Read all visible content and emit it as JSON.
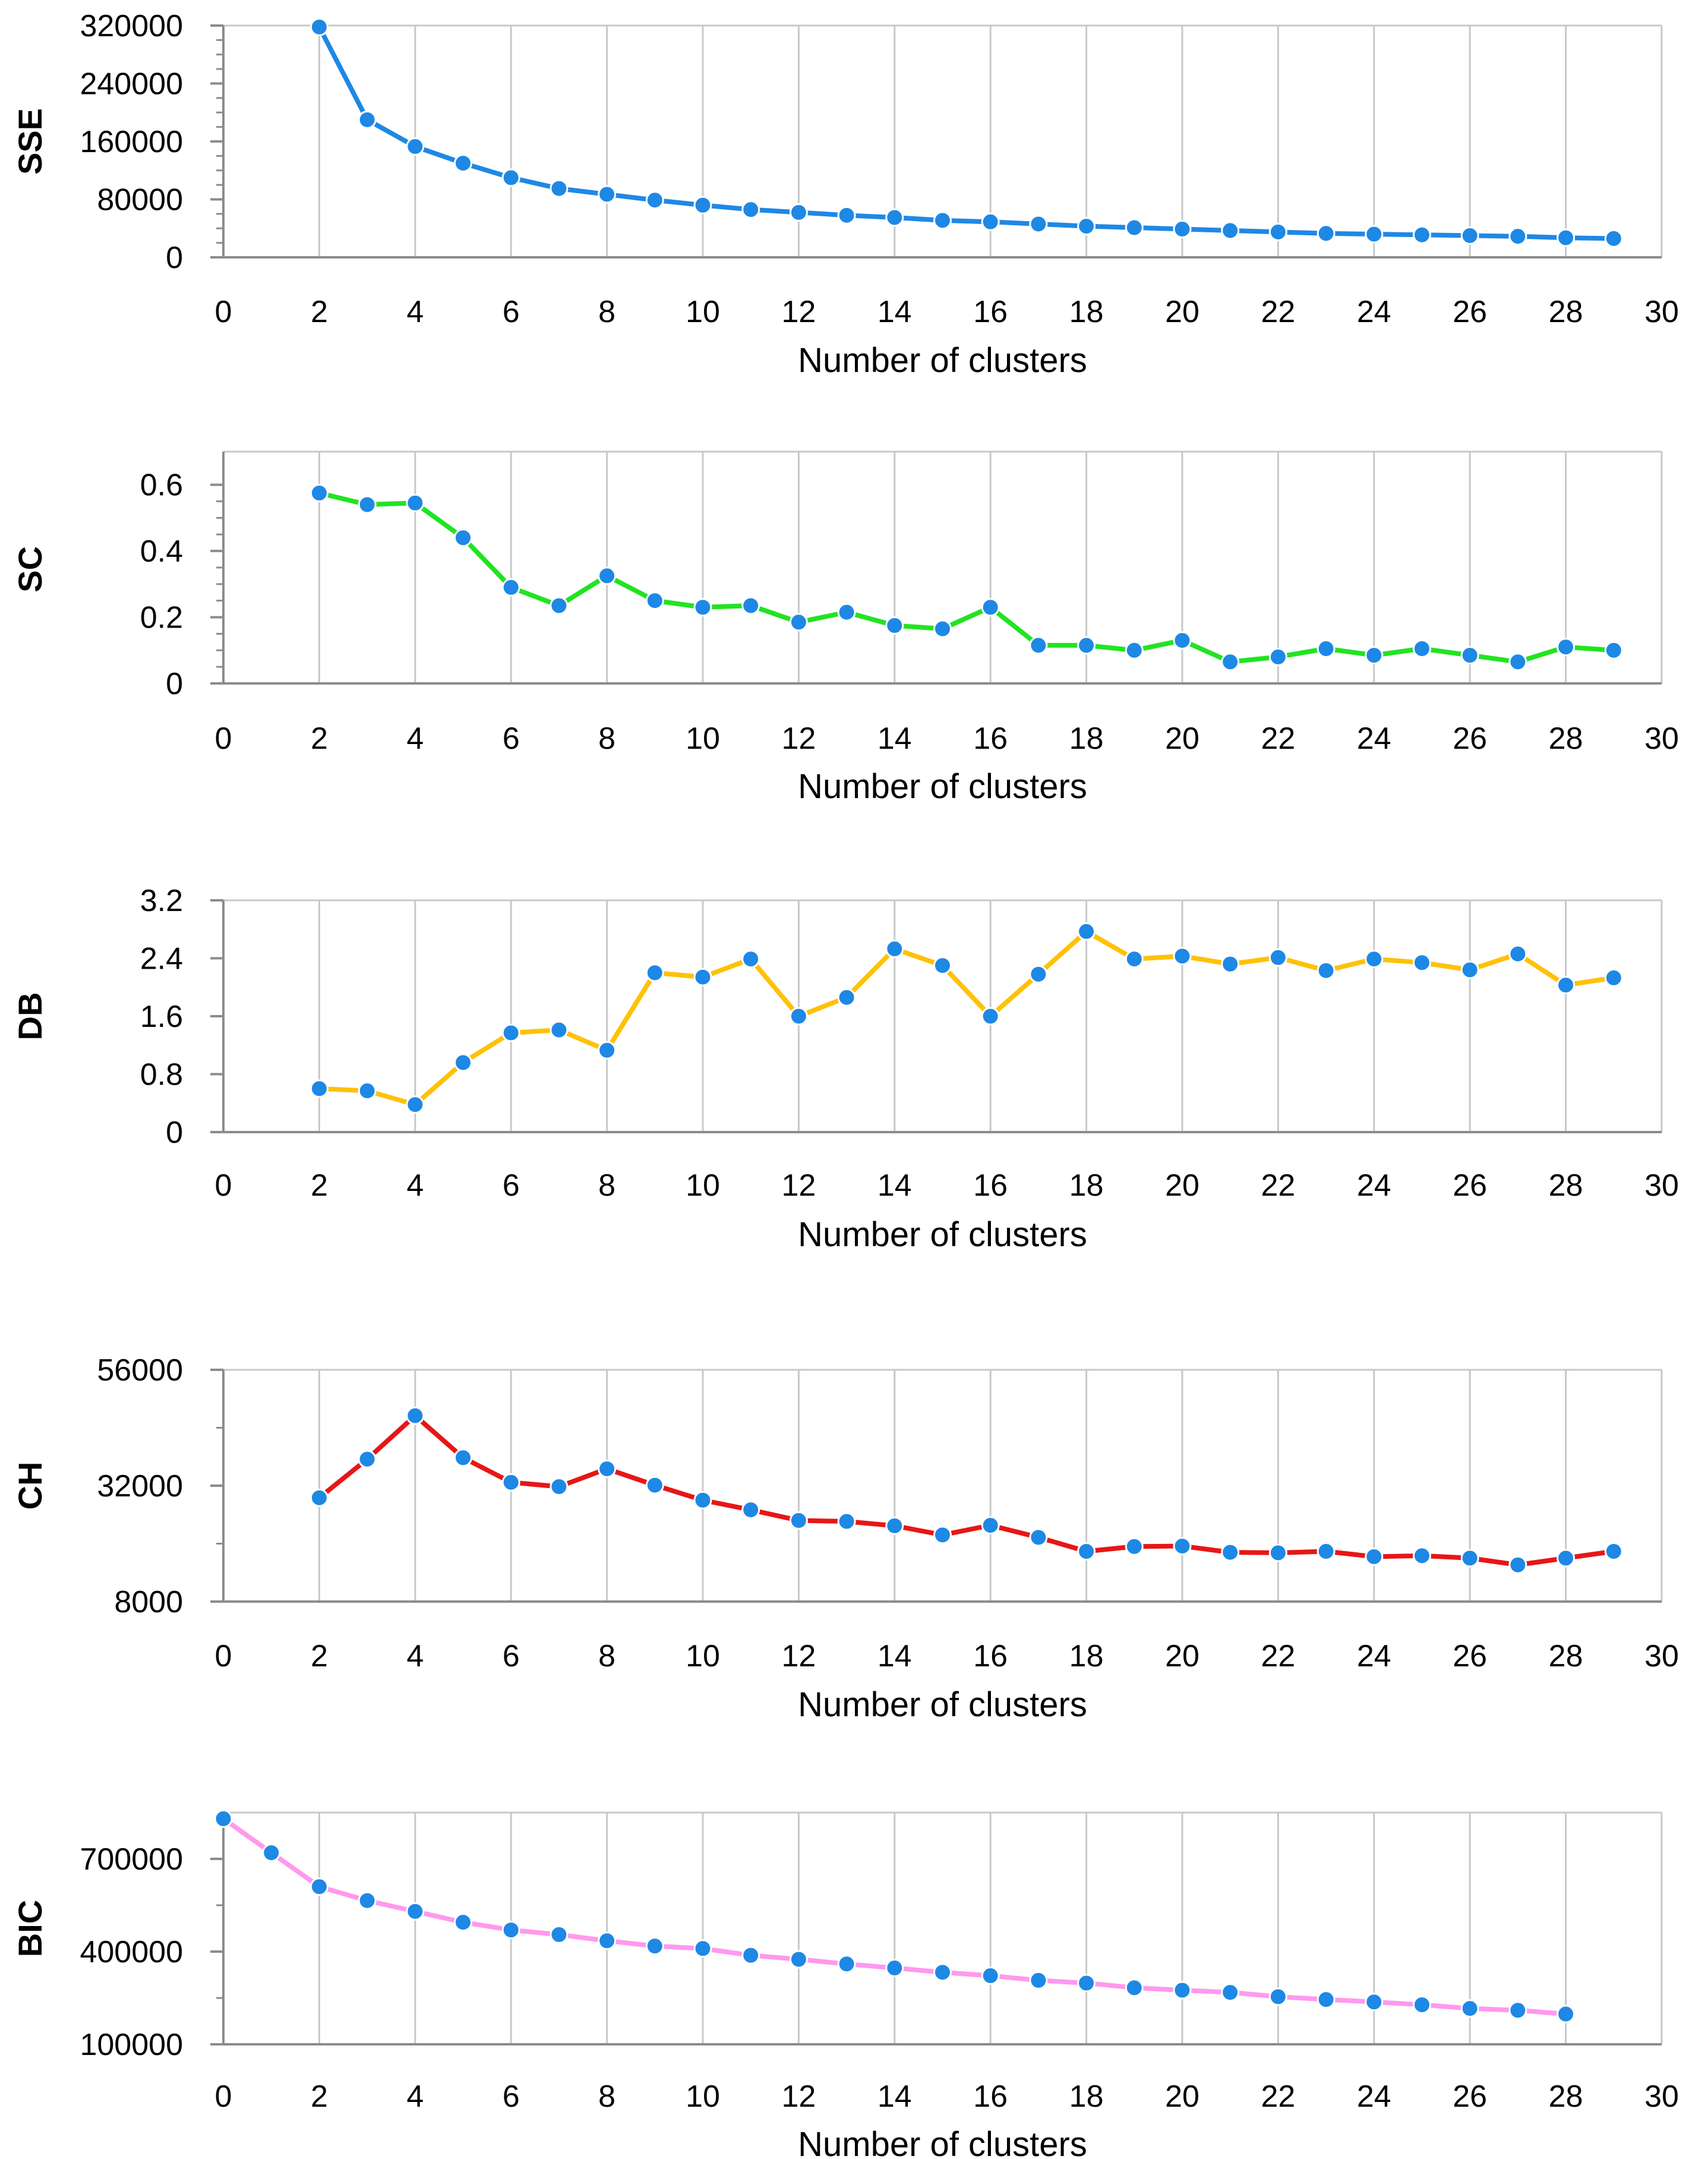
{
  "chart_data": [
    {
      "type": "line",
      "title": "",
      "xlabel": "Number of clusters",
      "ylabel": "SSE",
      "xlim": [
        0,
        30
      ],
      "xticks": [
        "0",
        "2",
        "4",
        "6",
        "8",
        "10",
        "12",
        "14",
        "16",
        "18",
        "20",
        "22",
        "24",
        "26",
        "28",
        "30"
      ],
      "ylim": [
        0,
        320000
      ],
      "yticks": [
        "0",
        "80000",
        "160000",
        "240000",
        "320000"
      ],
      "grid": "vertical",
      "line_color": "#1f88e5",
      "marker_color": "#1e88e5",
      "series": [
        {
          "x": [
            2,
            3,
            4,
            5,
            6,
            7,
            8,
            9,
            10,
            11,
            12,
            13,
            14,
            15,
            16,
            17,
            18,
            19,
            20,
            21,
            22,
            23,
            24,
            25,
            26,
            27,
            28,
            29
          ],
          "values": [
            318000,
            190000,
            153000,
            130000,
            110000,
            95000,
            87000,
            79000,
            72000,
            66000,
            62000,
            58000,
            55000,
            51000,
            49000,
            46000,
            43000,
            41000,
            39000,
            37000,
            35000,
            33000,
            32000,
            31000,
            30000,
            29000,
            27000,
            26000
          ]
        }
      ]
    },
    {
      "type": "line",
      "title": "",
      "xlabel": "Number of clusters",
      "ylabel": "SC",
      "xlim": [
        0,
        30
      ],
      "xticks": [
        "0",
        "2",
        "4",
        "6",
        "8",
        "10",
        "12",
        "14",
        "16",
        "18",
        "20",
        "22",
        "24",
        "26",
        "28",
        "30"
      ],
      "ylim": [
        0,
        0.7
      ],
      "yticks": [
        "0",
        "0.2",
        "0.4",
        "0.6"
      ],
      "grid": "vertical",
      "line_color": "#22e322",
      "marker_color": "#1e88e5",
      "series": [
        {
          "x": [
            2,
            3,
            4,
            5,
            6,
            7,
            8,
            9,
            10,
            11,
            12,
            13,
            14,
            15,
            16,
            17,
            18,
            19,
            20,
            21,
            22,
            23,
            24,
            25,
            26,
            27,
            28,
            29
          ],
          "values": [
            0.575,
            0.54,
            0.545,
            0.44,
            0.29,
            0.235,
            0.325,
            0.25,
            0.23,
            0.235,
            0.185,
            0.215,
            0.175,
            0.165,
            0.23,
            0.115,
            0.115,
            0.1,
            0.13,
            0.065,
            0.08,
            0.105,
            0.085,
            0.105,
            0.085,
            0.065,
            0.11,
            0.1
          ]
        }
      ]
    },
    {
      "type": "line",
      "title": "",
      "xlabel": "Number of clusters",
      "ylabel": "DB",
      "xlim": [
        0,
        30
      ],
      "xticks": [
        "0",
        "2",
        "4",
        "6",
        "8",
        "10",
        "12",
        "14",
        "16",
        "18",
        "20",
        "22",
        "24",
        "26",
        "28",
        "30"
      ],
      "ylim": [
        0,
        3.2
      ],
      "yticks": [
        "0",
        "0.8",
        "1.6",
        "2.4",
        "3.2"
      ],
      "grid": "vertical",
      "line_color": "#ffc107",
      "marker_color": "#1e88e5",
      "series": [
        {
          "x": [
            2,
            3,
            4,
            5,
            6,
            7,
            8,
            9,
            10,
            11,
            12,
            13,
            14,
            15,
            16,
            17,
            18,
            19,
            20,
            21,
            22,
            23,
            24,
            25,
            26,
            27,
            28,
            29
          ],
          "values": [
            0.6,
            0.57,
            0.38,
            0.96,
            1.37,
            1.41,
            1.13,
            2.2,
            2.14,
            2.39,
            1.6,
            1.86,
            2.53,
            2.3,
            1.6,
            2.18,
            2.77,
            2.39,
            2.43,
            2.32,
            2.41,
            2.23,
            2.39,
            2.34,
            2.24,
            2.46,
            2.03,
            2.13
          ]
        }
      ]
    },
    {
      "type": "line",
      "title": "",
      "xlabel": "Number of clusters",
      "ylabel": "CH",
      "xlim": [
        0,
        30
      ],
      "xticks": [
        "0",
        "2",
        "4",
        "6",
        "8",
        "10",
        "12",
        "14",
        "16",
        "18",
        "20",
        "22",
        "24",
        "26",
        "28",
        "30"
      ],
      "ylim": [
        8000,
        56000
      ],
      "yticks": [
        "8000",
        "32000",
        "56000"
      ],
      "grid": "vertical",
      "line_color": "#e81616",
      "marker_color": "#1e88e5",
      "series": [
        {
          "x": [
            2,
            3,
            4,
            5,
            6,
            7,
            8,
            9,
            10,
            11,
            12,
            13,
            14,
            15,
            16,
            17,
            18,
            19,
            20,
            21,
            22,
            23,
            24,
            25,
            26,
            27,
            28,
            29
          ],
          "values": [
            29500,
            37500,
            46500,
            37800,
            32700,
            31800,
            35500,
            32100,
            29000,
            27000,
            24800,
            24600,
            23700,
            21800,
            23800,
            21300,
            18400,
            19400,
            19500,
            18200,
            18100,
            18400,
            17300,
            17500,
            17000,
            15600,
            17000,
            18400
          ]
        }
      ]
    },
    {
      "type": "line",
      "title": "",
      "xlabel": "Number of clusters",
      "ylabel": "BIC",
      "xlim": [
        0,
        30
      ],
      "xticks": [
        "0",
        "2",
        "4",
        "6",
        "8",
        "10",
        "12",
        "14",
        "16",
        "18",
        "20",
        "22",
        "24",
        "26",
        "28",
        "30"
      ],
      "ylim": [
        100000,
        850000
      ],
      "yticks": [
        "100000",
        "400000",
        "700000"
      ],
      "grid": "vertical",
      "line_color": "#ff99ee",
      "marker_color": "#1e88e5",
      "series": [
        {
          "x": [
            0,
            1,
            2,
            3,
            4,
            5,
            6,
            7,
            8,
            9,
            10,
            11,
            12,
            13,
            14,
            15,
            16,
            17,
            18,
            19,
            20,
            21,
            22,
            23,
            24,
            25,
            26,
            27,
            28
          ],
          "values": [
            830000,
            720000,
            610000,
            565000,
            530000,
            495000,
            470000,
            455000,
            435000,
            418000,
            410000,
            388000,
            375000,
            360000,
            347000,
            333000,
            322000,
            307000,
            298000,
            283000,
            275000,
            268000,
            254000,
            245000,
            237000,
            228000,
            216000,
            210000,
            198000
          ]
        }
      ]
    }
  ]
}
